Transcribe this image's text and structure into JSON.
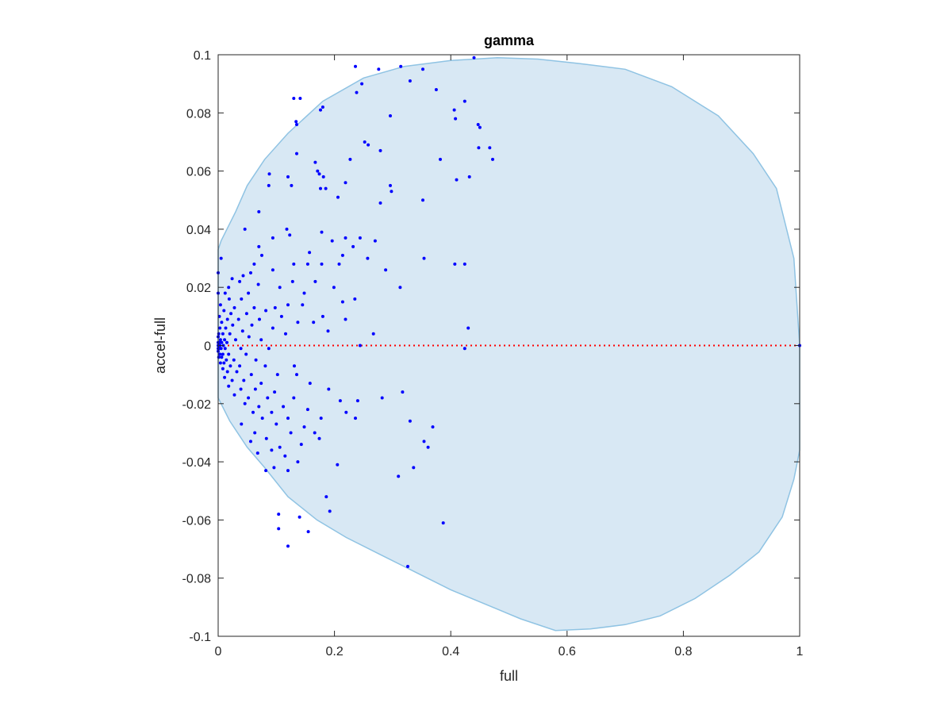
{
  "chart_data": {
    "type": "scatter",
    "title": "gamma",
    "xlabel": "full",
    "ylabel": "accel-full",
    "xlim": [
      0,
      1
    ],
    "ylim": [
      -0.1,
      0.1
    ],
    "xticks": [
      0,
      0.2,
      0.4,
      0.6,
      0.8,
      1
    ],
    "xtick_labels": [
      "0",
      "0.2",
      "0.4",
      "0.6",
      "0.8",
      "1"
    ],
    "yticks": [
      -0.1,
      -0.08,
      -0.06,
      -0.04,
      -0.02,
      0,
      0.02,
      0.04,
      0.06,
      0.08,
      0.1
    ],
    "ytick_labels": [
      "-0.1",
      "-0.08",
      "-0.06",
      "-0.04",
      "-0.02",
      "0",
      "0.02",
      "0.04",
      "0.06",
      "0.08",
      "0.1"
    ],
    "grid": false,
    "reference_line": {
      "y": 0,
      "color": "#ff0000",
      "style": "dotted"
    },
    "region": {
      "shape": "closed curve through the points below",
      "fill": "#d8e8f4",
      "stroke": "#8fc3e3",
      "boundary": [
        [
          1.0,
          0.0
        ],
        [
          0.99,
          0.03
        ],
        [
          0.96,
          0.054
        ],
        [
          0.92,
          0.066
        ],
        [
          0.86,
          0.079
        ],
        [
          0.78,
          0.089
        ],
        [
          0.7,
          0.095
        ],
        [
          0.62,
          0.097
        ],
        [
          0.55,
          0.0985
        ],
        [
          0.48,
          0.099
        ],
        [
          0.4,
          0.098
        ],
        [
          0.32,
          0.096
        ],
        [
          0.25,
          0.092
        ],
        [
          0.18,
          0.084
        ],
        [
          0.12,
          0.073
        ],
        [
          0.08,
          0.064
        ],
        [
          0.05,
          0.055
        ],
        [
          0.03,
          0.046
        ],
        [
          0.015,
          0.04
        ],
        [
          0.005,
          0.036
        ],
        [
          0.0,
          0.033
        ],
        [
          0.0,
          0.0
        ],
        [
          0.0,
          -0.018
        ],
        [
          0.02,
          -0.026
        ],
        [
          0.05,
          -0.035
        ],
        [
          0.08,
          -0.042
        ],
        [
          0.12,
          -0.052
        ],
        [
          0.17,
          -0.06
        ],
        [
          0.22,
          -0.066
        ],
        [
          0.28,
          -0.072
        ],
        [
          0.34,
          -0.078
        ],
        [
          0.4,
          -0.084
        ],
        [
          0.46,
          -0.089
        ],
        [
          0.52,
          -0.094
        ],
        [
          0.58,
          -0.098
        ],
        [
          0.64,
          -0.0975
        ],
        [
          0.7,
          -0.096
        ],
        [
          0.76,
          -0.093
        ],
        [
          0.82,
          -0.087
        ],
        [
          0.88,
          -0.079
        ],
        [
          0.93,
          -0.071
        ],
        [
          0.97,
          -0.059
        ],
        [
          0.99,
          -0.046
        ],
        [
          1.0,
          -0.036
        ],
        [
          1.0,
          0.0
        ]
      ]
    },
    "series": [
      {
        "marker_color": "#0000ff",
        "points": [
          [
            0.44,
            0.099
          ],
          [
            0.236,
            0.096
          ],
          [
            0.314,
            0.096
          ],
          [
            0.276,
            0.095
          ],
          [
            0.352,
            0.095
          ],
          [
            0.33,
            0.091
          ],
          [
            0.247,
            0.09
          ],
          [
            0.375,
            0.088
          ],
          [
            0.238,
            0.087
          ],
          [
            0.13,
            0.085
          ],
          [
            0.141,
            0.085
          ],
          [
            0.424,
            0.084
          ],
          [
            0.18,
            0.082
          ],
          [
            0.176,
            0.081
          ],
          [
            0.406,
            0.081
          ],
          [
            0.296,
            0.079
          ],
          [
            0.408,
            0.078
          ],
          [
            0.134,
            0.077
          ],
          [
            0.135,
            0.076
          ],
          [
            0.447,
            0.076
          ],
          [
            0.45,
            0.075
          ],
          [
            0.252,
            0.07
          ],
          [
            0.258,
            0.069
          ],
          [
            0.448,
            0.068
          ],
          [
            0.467,
            0.068
          ],
          [
            0.279,
            0.067
          ],
          [
            0.135,
            0.066
          ],
          [
            0.382,
            0.064
          ],
          [
            0.472,
            0.064
          ],
          [
            0.227,
            0.064
          ],
          [
            0.167,
            0.063
          ],
          [
            0.171,
            0.06
          ],
          [
            0.174,
            0.059
          ],
          [
            0.088,
            0.059
          ],
          [
            0.181,
            0.058
          ],
          [
            0.12,
            0.058
          ],
          [
            0.432,
            0.058
          ],
          [
            0.41,
            0.057
          ],
          [
            0.219,
            0.056
          ],
          [
            0.296,
            0.055
          ],
          [
            0.087,
            0.055
          ],
          [
            0.126,
            0.055
          ],
          [
            0.176,
            0.054
          ],
          [
            0.185,
            0.054
          ],
          [
            0.298,
            0.053
          ],
          [
            0.206,
            0.051
          ],
          [
            0.352,
            0.05
          ],
          [
            0.279,
            0.049
          ],
          [
            0.07,
            0.046
          ],
          [
            0.046,
            0.04
          ],
          [
            0.118,
            0.04
          ],
          [
            0.178,
            0.039
          ],
          [
            0.123,
            0.038
          ],
          [
            0.219,
            0.037
          ],
          [
            0.244,
            0.037
          ],
          [
            0.094,
            0.037
          ],
          [
            0.27,
            0.036
          ],
          [
            0.196,
            0.036
          ],
          [
            0.07,
            0.034
          ],
          [
            0.232,
            0.034
          ],
          [
            0.157,
            0.032
          ],
          [
            0.075,
            0.031
          ],
          [
            0.214,
            0.031
          ],
          [
            0.257,
            0.03
          ],
          [
            0.354,
            0.03
          ],
          [
            0.062,
            0.028
          ],
          [
            0.13,
            0.028
          ],
          [
            0.154,
            0.028
          ],
          [
            0.178,
            0.028
          ],
          [
            0.208,
            0.028
          ],
          [
            0.407,
            0.028
          ],
          [
            0.424,
            0.028
          ],
          [
            0.094,
            0.026
          ],
          [
            0.288,
            0.026
          ],
          [
            0.056,
            0.025
          ],
          [
            0.043,
            0.024
          ],
          [
            0.024,
            0.023
          ],
          [
            0.018,
            0.02
          ],
          [
            0.037,
            0.022
          ],
          [
            0.069,
            0.021
          ],
          [
            0.106,
            0.02
          ],
          [
            0.012,
            0.018
          ],
          [
            0.052,
            0.018
          ],
          [
            0.148,
            0.018
          ],
          [
            0.128,
            0.022
          ],
          [
            0.167,
            0.022
          ],
          [
            0.199,
            0.02
          ],
          [
            0.0,
            0.018
          ],
          [
            0.019,
            0.016
          ],
          [
            0.04,
            0.016
          ],
          [
            0.313,
            0.02
          ],
          [
            0.235,
            0.016
          ],
          [
            0.214,
            0.015
          ],
          [
            0.004,
            0.014
          ],
          [
            0.028,
            0.013
          ],
          [
            0.062,
            0.013
          ],
          [
            0.098,
            0.013
          ],
          [
            0.12,
            0.014
          ],
          [
            0.01,
            0.012
          ],
          [
            0.022,
            0.011
          ],
          [
            0.049,
            0.011
          ],
          [
            0.082,
            0.012
          ],
          [
            0.145,
            0.014
          ],
          [
            0.002,
            0.01
          ],
          [
            0.016,
            0.009
          ],
          [
            0.035,
            0.009
          ],
          [
            0.071,
            0.009
          ],
          [
            0.109,
            0.01
          ],
          [
            0.18,
            0.01
          ],
          [
            0.006,
            0.008
          ],
          [
            0.025,
            0.007
          ],
          [
            0.058,
            0.007
          ],
          [
            0.137,
            0.008
          ],
          [
            0.219,
            0.009
          ],
          [
            0.003,
            0.006
          ],
          [
            0.013,
            0.006
          ],
          [
            0.042,
            0.005
          ],
          [
            0.094,
            0.006
          ],
          [
            0.164,
            0.008
          ],
          [
            0.43,
            0.006
          ],
          [
            0.001,
            0.004
          ],
          [
            0.008,
            0.004
          ],
          [
            0.02,
            0.004
          ],
          [
            0.053,
            0.003
          ],
          [
            0.116,
            0.004
          ],
          [
            0.189,
            0.005
          ],
          [
            0.267,
            0.004
          ],
          [
            0.0,
            0.003
          ],
          [
            0.004,
            0.002
          ],
          [
            0.011,
            0.002
          ],
          [
            0.03,
            0.002
          ],
          [
            0.074,
            0.002
          ],
          [
            0.0,
            0.001
          ],
          [
            0.002,
            0.001
          ],
          [
            0.006,
            0.001
          ],
          [
            0.015,
            0.001
          ],
          [
            0.0,
            0.0
          ],
          [
            0.001,
            0.0
          ],
          [
            0.003,
            0.0
          ],
          [
            0.009,
            0.0
          ],
          [
            0.244,
            0.0
          ],
          [
            0.0,
            -0.001
          ],
          [
            0.002,
            -0.001
          ],
          [
            0.005,
            -0.001
          ],
          [
            0.012,
            -0.001
          ],
          [
            0.039,
            -0.001
          ],
          [
            0.087,
            -0.001
          ],
          [
            0.424,
            -0.001
          ],
          [
            1.0,
            0.0
          ],
          [
            0.0,
            -0.002
          ],
          [
            0.003,
            -0.003
          ],
          [
            0.008,
            -0.003
          ],
          [
            0.018,
            -0.003
          ],
          [
            0.048,
            -0.003
          ],
          [
            0.001,
            -0.004
          ],
          [
            0.006,
            -0.004
          ],
          [
            0.014,
            -0.005
          ],
          [
            0.027,
            -0.005
          ],
          [
            0.065,
            -0.005
          ],
          [
            0.004,
            -0.006
          ],
          [
            0.01,
            -0.006
          ],
          [
            0.021,
            -0.007
          ],
          [
            0.037,
            -0.007
          ],
          [
            0.081,
            -0.007
          ],
          [
            0.131,
            -0.007
          ],
          [
            0.008,
            -0.008
          ],
          [
            0.016,
            -0.009
          ],
          [
            0.032,
            -0.009
          ],
          [
            0.057,
            -0.01
          ],
          [
            0.102,
            -0.01
          ],
          [
            0.011,
            -0.011
          ],
          [
            0.024,
            -0.012
          ],
          [
            0.044,
            -0.012
          ],
          [
            0.074,
            -0.013
          ],
          [
            0.135,
            -0.01
          ],
          [
            0.158,
            -0.013
          ],
          [
            0.018,
            -0.014
          ],
          [
            0.039,
            -0.015
          ],
          [
            0.064,
            -0.015
          ],
          [
            0.097,
            -0.016
          ],
          [
            0.19,
            -0.015
          ],
          [
            0.028,
            -0.017
          ],
          [
            0.052,
            -0.018
          ],
          [
            0.085,
            -0.018
          ],
          [
            0.13,
            -0.018
          ],
          [
            0.046,
            -0.02
          ],
          [
            0.07,
            -0.021
          ],
          [
            0.112,
            -0.021
          ],
          [
            0.317,
            -0.016
          ],
          [
            0.282,
            -0.018
          ],
          [
            0.24,
            -0.019
          ],
          [
            0.06,
            -0.023
          ],
          [
            0.092,
            -0.023
          ],
          [
            0.154,
            -0.022
          ],
          [
            0.21,
            -0.019
          ],
          [
            0.076,
            -0.025
          ],
          [
            0.12,
            -0.025
          ],
          [
            0.177,
            -0.025
          ],
          [
            0.22,
            -0.023
          ],
          [
            0.04,
            -0.027
          ],
          [
            0.1,
            -0.027
          ],
          [
            0.148,
            -0.028
          ],
          [
            0.236,
            -0.025
          ],
          [
            0.33,
            -0.026
          ],
          [
            0.063,
            -0.03
          ],
          [
            0.125,
            -0.03
          ],
          [
            0.166,
            -0.03
          ],
          [
            0.369,
            -0.028
          ],
          [
            0.083,
            -0.032
          ],
          [
            0.106,
            -0.035
          ],
          [
            0.143,
            -0.034
          ],
          [
            0.174,
            -0.032
          ],
          [
            0.056,
            -0.033
          ],
          [
            0.068,
            -0.037
          ],
          [
            0.092,
            -0.036
          ],
          [
            0.354,
            -0.033
          ],
          [
            0.361,
            -0.035
          ],
          [
            0.115,
            -0.038
          ],
          [
            0.137,
            -0.04
          ],
          [
            0.205,
            -0.041
          ],
          [
            0.082,
            -0.043
          ],
          [
            0.096,
            -0.042
          ],
          [
            0.12,
            -0.043
          ],
          [
            0.31,
            -0.045
          ],
          [
            0.336,
            -0.042
          ],
          [
            0.186,
            -0.052
          ],
          [
            0.192,
            -0.057
          ],
          [
            0.104,
            -0.058
          ],
          [
            0.14,
            -0.059
          ],
          [
            0.104,
            -0.063
          ],
          [
            0.155,
            -0.064
          ],
          [
            0.12,
            -0.069
          ],
          [
            0.387,
            -0.061
          ],
          [
            0.326,
            -0.076
          ],
          [
            0.0,
            0.025
          ],
          [
            0.005,
            0.03
          ]
        ]
      }
    ]
  }
}
